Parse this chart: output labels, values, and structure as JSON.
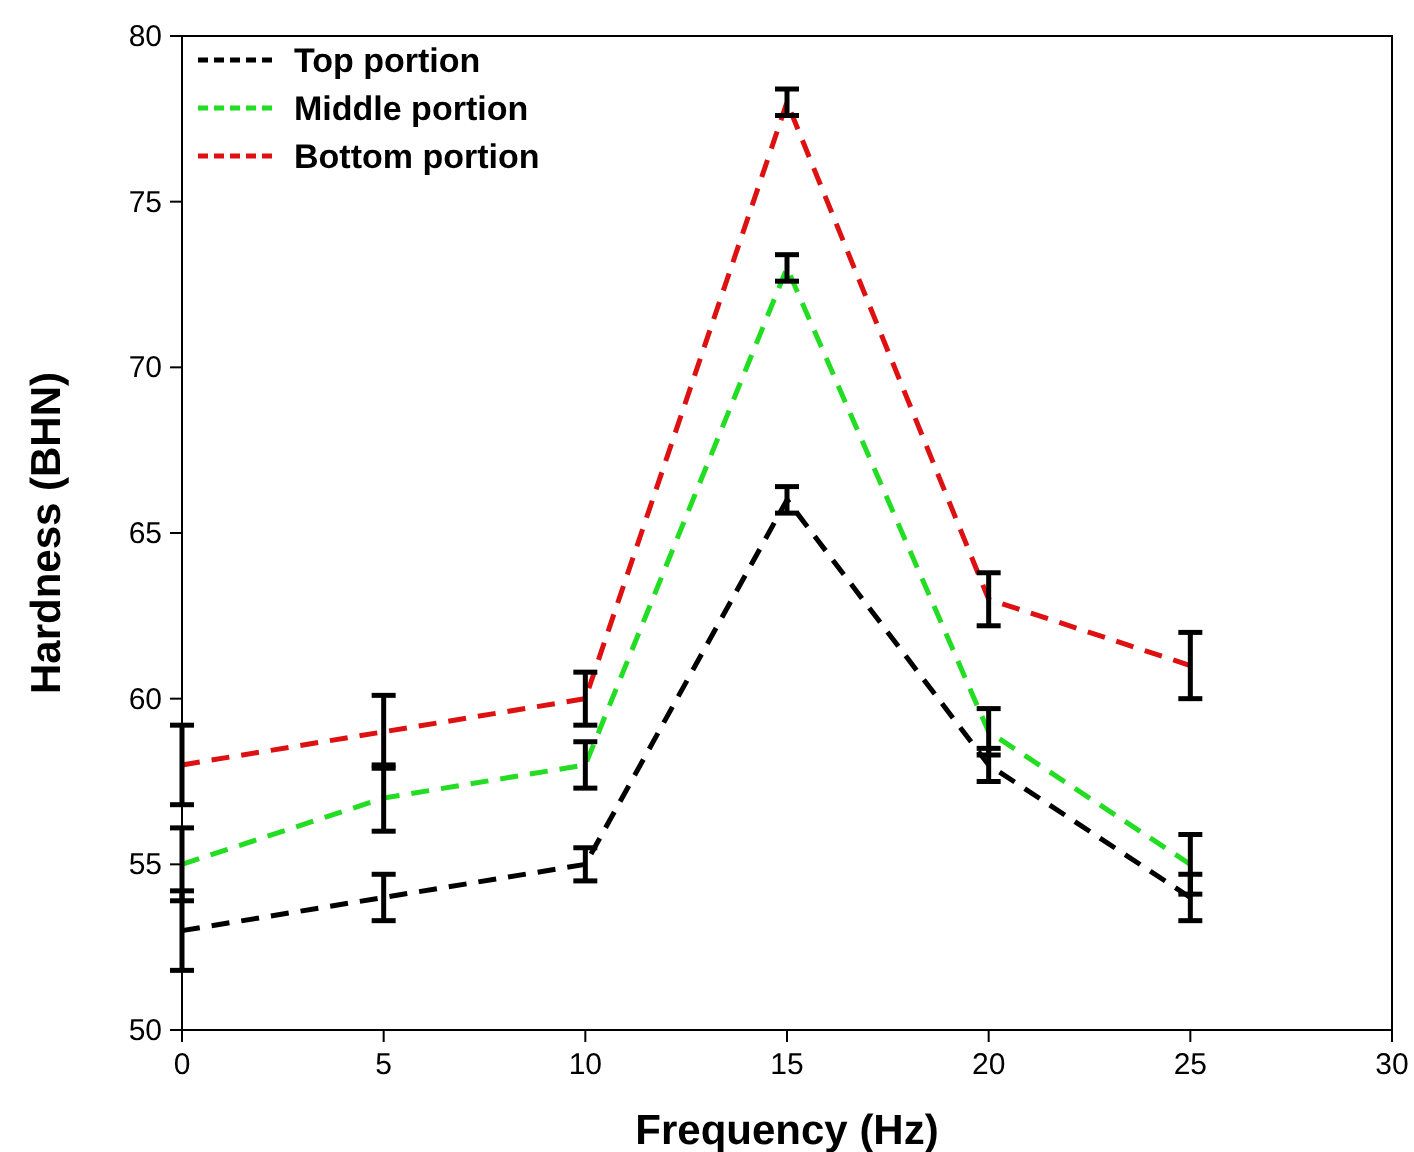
{
  "chart_data": {
    "type": "line",
    "xlabel": "Frequency (Hz)",
    "ylabel": "Hardness (BHN)",
    "x": [
      0,
      5,
      10,
      15,
      20,
      25
    ],
    "series": [
      {
        "name": "Top portion",
        "color": "#000000",
        "values": [
          53,
          54,
          55,
          66,
          58,
          54
        ],
        "errors": [
          1.2,
          0.7,
          0.5,
          0.4,
          0.5,
          0.7
        ]
      },
      {
        "name": "Middle portion",
        "color": "#22dd22",
        "values": [
          55,
          57,
          58,
          73,
          59,
          55
        ],
        "errors": [
          1.1,
          1.0,
          0.7,
          0.4,
          0.7,
          0.9
        ]
      },
      {
        "name": "Bottom portion",
        "color": "#dd1111",
        "values": [
          58,
          59,
          60,
          78,
          63,
          61
        ],
        "errors": [
          1.2,
          1.1,
          0.8,
          0.4,
          0.8,
          1.0
        ]
      }
    ],
    "xlim": [
      0,
      30
    ],
    "xticks": [
      0,
      5,
      10,
      15,
      20,
      25,
      30
    ],
    "ylim": [
      50,
      80
    ],
    "yticks": [
      50,
      55,
      60,
      65,
      70,
      75,
      80
    ],
    "grid": false,
    "legend": "top left",
    "marker": "none",
    "line_style": "dashed"
  }
}
